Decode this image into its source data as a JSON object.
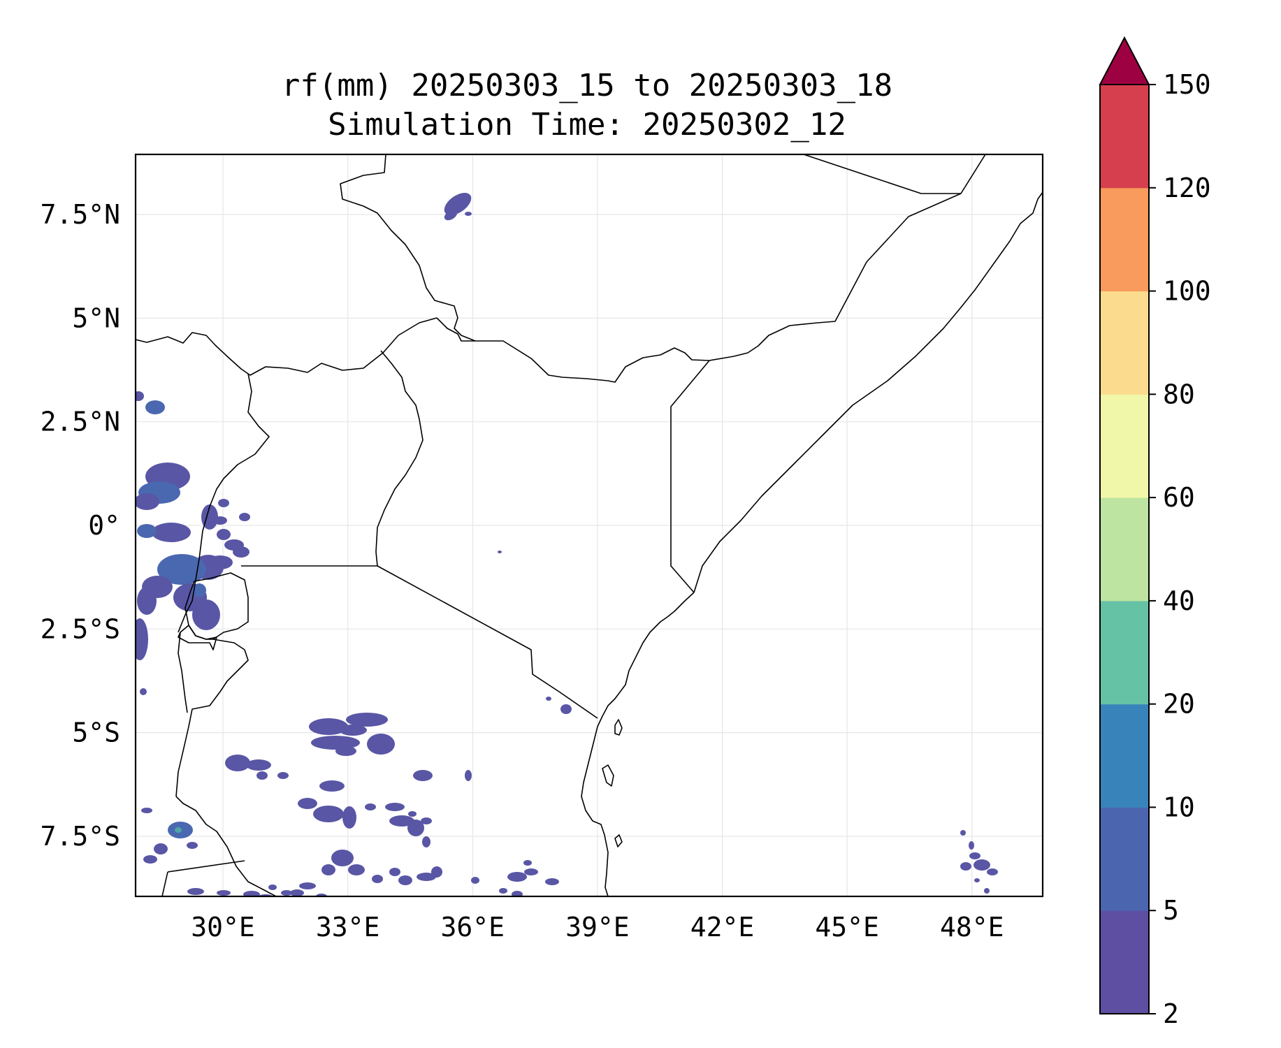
{
  "title": {
    "line1": "rf(mm) 20250303_15 to 20250303_18",
    "line2": "Simulation Time: 20250302_12"
  },
  "map": {
    "lon_range": [
      27.9,
      49.7
    ],
    "lat_range": [
      -8.95,
      8.95
    ],
    "x_ticks": [
      {
        "value": 30,
        "label": "30°E"
      },
      {
        "value": 33,
        "label": "33°E"
      },
      {
        "value": 36,
        "label": "36°E"
      },
      {
        "value": 39,
        "label": "39°E"
      },
      {
        "value": 42,
        "label": "42°E"
      },
      {
        "value": 45,
        "label": "45°E"
      },
      {
        "value": 48,
        "label": "48°E"
      }
    ],
    "y_ticks": [
      {
        "value": 7.5,
        "label": "7.5°N"
      },
      {
        "value": 5,
        "label": "5°N"
      },
      {
        "value": 2.5,
        "label": "2.5°N"
      },
      {
        "value": 0,
        "label": "0°"
      },
      {
        "value": -2.5,
        "label": "2.5°S"
      },
      {
        "value": -5,
        "label": "5°S"
      },
      {
        "value": -7.5,
        "label": "7.5°S"
      }
    ],
    "gridlines": true,
    "rain_colors": {
      "low": "#5956a5",
      "mid": "#4a68b0",
      "teal": "#4fa3a6"
    }
  },
  "colorbar": {
    "levels": [
      "2",
      "5",
      "10",
      "20",
      "40",
      "60",
      "80",
      "100",
      "120",
      "150"
    ],
    "colors": [
      "#5e4fa2",
      "#4b66af",
      "#3983bb",
      "#66c2a5",
      "#bde4a0",
      "#f1f7a9",
      "#fbdc8e",
      "#f99b5c",
      "#d6404e"
    ],
    "extend_color": "#9e0142",
    "extend": "max"
  }
}
